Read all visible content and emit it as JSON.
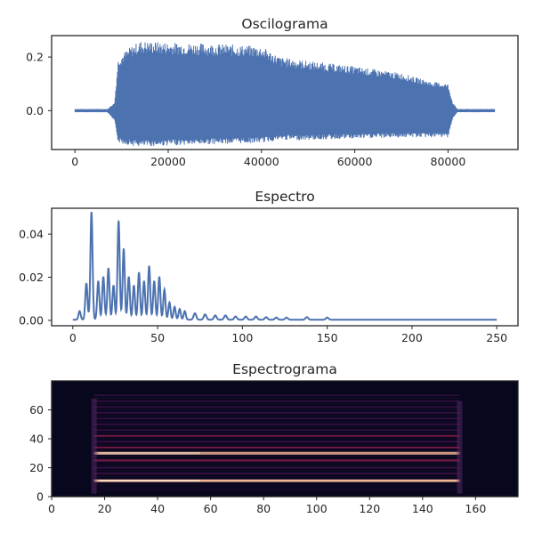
{
  "colors": {
    "line": "#4c72b0",
    "axes": "#262626",
    "spectrogram_background": "#07071d",
    "spectrogram_band_low": "#4a1651",
    "spectrogram_band_mid": "#b52456",
    "spectrogram_band_high": "#fac098"
  },
  "chart_data": [
    {
      "type": "line",
      "title": "Oscilograma",
      "xlim": [
        -5000,
        95000
      ],
      "ylim": [
        -0.145,
        0.28
      ],
      "x_ticks": [
        0,
        20000,
        40000,
        60000,
        80000
      ],
      "y_ticks": [
        0.0,
        0.2
      ],
      "x_tick_labels": [
        "0",
        "20000",
        "40000",
        "60000",
        "80000"
      ],
      "y_tick_labels": [
        "0.0",
        "0.2"
      ],
      "envelope": {
        "x": [
          0,
          7000,
          8500,
          9300,
          12000,
          14000,
          20000,
          30000,
          40000,
          44000,
          48000,
          60000,
          70000,
          76000,
          80000,
          81000,
          82000,
          90000
        ],
        "upper": [
          0.006,
          0.006,
          0.03,
          0.2,
          0.24,
          0.26,
          0.255,
          0.25,
          0.24,
          0.2,
          0.19,
          0.165,
          0.14,
          0.11,
          0.1,
          0.03,
          0.006,
          0.006
        ],
        "lower": [
          -0.006,
          -0.006,
          -0.04,
          -0.12,
          -0.13,
          -0.135,
          -0.13,
          -0.125,
          -0.12,
          -0.11,
          -0.11,
          -0.105,
          -0.1,
          -0.1,
          -0.1,
          -0.03,
          -0.006,
          -0.006
        ]
      }
    },
    {
      "type": "line",
      "title": "Espectro",
      "xlim": [
        -12.5,
        262.5
      ],
      "ylim": [
        -0.0025,
        0.052
      ],
      "x_ticks": [
        0,
        50,
        100,
        150,
        200,
        250
      ],
      "y_ticks": [
        0.0,
        0.02,
        0.04
      ],
      "x_tick_labels": [
        "0",
        "50",
        "100",
        "150",
        "200",
        "250"
      ],
      "y_tick_labels": [
        "0.00",
        "0.02",
        "0.04"
      ],
      "peaks": {
        "x": [
          4,
          8,
          11,
          15,
          18,
          21,
          24,
          27,
          30,
          33,
          36,
          39,
          42,
          45,
          48,
          51,
          54,
          57,
          60,
          63,
          66,
          72,
          78,
          84,
          90,
          96,
          102,
          108,
          114,
          120,
          126,
          138,
          150
        ],
        "y": [
          0.004,
          0.017,
          0.05,
          0.018,
          0.02,
          0.024,
          0.016,
          0.046,
          0.033,
          0.02,
          0.016,
          0.022,
          0.018,
          0.025,
          0.018,
          0.02,
          0.014,
          0.008,
          0.006,
          0.005,
          0.004,
          0.003,
          0.0025,
          0.002,
          0.002,
          0.0015,
          0.0015,
          0.0015,
          0.0012,
          0.001,
          0.001,
          0.0012,
          0.001
        ]
      }
    },
    {
      "type": "heatmap",
      "title": "Espectrograma",
      "xlim": [
        0,
        176
      ],
      "ylim": [
        0,
        80
      ],
      "x_ticks": [
        0,
        20,
        40,
        60,
        80,
        100,
        120,
        140,
        160
      ],
      "y_ticks": [
        0,
        20,
        40,
        60
      ],
      "x_tick_labels": [
        "0",
        "20",
        "40",
        "60",
        "80",
        "100",
        "120",
        "140",
        "160"
      ],
      "y_tick_labels": [
        "0",
        "20",
        "40",
        "60"
      ],
      "active_time_range": [
        16,
        154
      ],
      "bands": [
        {
          "freq": 11,
          "intensity": 0.92
        },
        {
          "freq": 16,
          "intensity": 0.45
        },
        {
          "freq": 20,
          "intensity": 0.42
        },
        {
          "freq": 25,
          "intensity": 0.5
        },
        {
          "freq": 30,
          "intensity": 0.85
        },
        {
          "freq": 34,
          "intensity": 0.5
        },
        {
          "freq": 38,
          "intensity": 0.45
        },
        {
          "freq": 42,
          "intensity": 0.48
        },
        {
          "freq": 46,
          "intensity": 0.4
        },
        {
          "freq": 50,
          "intensity": 0.38
        },
        {
          "freq": 54,
          "intensity": 0.35
        },
        {
          "freq": 58,
          "intensity": 0.3
        },
        {
          "freq": 62,
          "intensity": 0.26
        },
        {
          "freq": 66,
          "intensity": 0.22
        },
        {
          "freq": 70,
          "intensity": 0.15
        }
      ]
    }
  ]
}
